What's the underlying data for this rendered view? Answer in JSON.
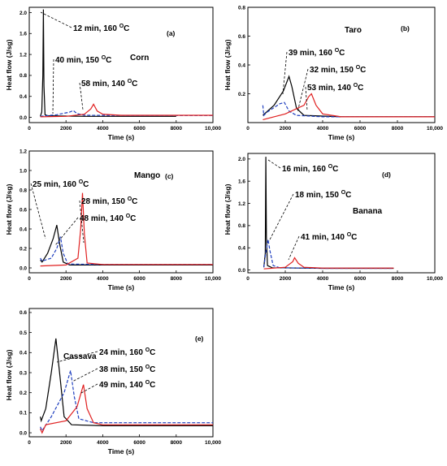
{
  "chart_data": [
    {
      "type": "line",
      "panel": "(a)",
      "crop": "Corn",
      "xlabel": "Time (s)",
      "ylabel": "Heat flow (J/sg)",
      "xlim": [
        0,
        10000
      ],
      "ylim": [
        -0.1,
        2.1
      ],
      "xticks": [
        0,
        2000,
        4000,
        6000,
        8000,
        10000
      ],
      "xtick_labels": [
        "0",
        "2000",
        "4000",
        "6000",
        "8000",
        "10,000"
      ],
      "yticks": [
        0.0,
        0.4,
        0.8,
        1.2,
        1.6,
        2.0
      ],
      "ytick_labels": [
        "0.0",
        "0.4",
        "0.8",
        "1.2",
        "1.6",
        "2.0"
      ],
      "series": [
        {
          "color": "#000000",
          "dash": "solid",
          "points": [
            [
              600,
              0.02
            ],
            [
              680,
              0.1
            ],
            [
              740,
              0.8
            ],
            [
              770,
              2.06
            ],
            [
              800,
              0.6
            ],
            [
              860,
              0.05
            ],
            [
              1000,
              0.03
            ],
            [
              3000,
              0.02
            ],
            [
              8000,
              0.02
            ]
          ],
          "annotation": "12 min, 160 ",
          "sup": "O",
          "unit": "C"
        },
        {
          "color": "#1f3fbf",
          "dash": "dashed",
          "points": [
            [
              600,
              0.02
            ],
            [
              1500,
              0.05
            ],
            [
              2200,
              0.1
            ],
            [
              2400,
              0.13
            ],
            [
              2600,
              0.07
            ],
            [
              3000,
              0.04
            ],
            [
              6000,
              0.035
            ],
            [
              10000,
              0.035
            ]
          ],
          "annotation": "40 min, 150 ",
          "sup": "O",
          "unit": "C"
        },
        {
          "color": "#e02020",
          "dash": "solid",
          "points": [
            [
              600,
              0.01
            ],
            [
              2000,
              0.02
            ],
            [
              3000,
              0.06
            ],
            [
              3350,
              0.16
            ],
            [
              3500,
              0.25
            ],
            [
              3700,
              0.12
            ],
            [
              4000,
              0.06
            ],
            [
              5000,
              0.04
            ],
            [
              10000,
              0.04
            ]
          ],
          "annotation": "58 min, 140 ",
          "sup": "O",
          "unit": "C"
        }
      ]
    },
    {
      "type": "line",
      "panel": "(b)",
      "crop": "Taro",
      "xlabel": "Time (s)",
      "ylabel": "Heat flow (J/sg)",
      "xlim": [
        0,
        10000
      ],
      "ylim": [
        0.0,
        0.8
      ],
      "xticks": [
        0,
        2000,
        4000,
        6000,
        8000,
        10000
      ],
      "xtick_labels": [
        "0",
        "2000",
        "4000",
        "6000",
        "8000",
        "10,000"
      ],
      "yticks": [
        0.2,
        0.4,
        0.6,
        0.8
      ],
      "ytick_labels": [
        "0.2",
        "0.4",
        "0.6",
        "0.8"
      ],
      "series": [
        {
          "color": "#000000",
          "dash": "solid",
          "points": [
            [
              800,
              0.05
            ],
            [
              1400,
              0.12
            ],
            [
              1900,
              0.22
            ],
            [
              2200,
              0.32
            ],
            [
              2350,
              0.25
            ],
            [
              2600,
              0.1
            ],
            [
              3000,
              0.05
            ],
            [
              5000,
              0.04
            ],
            [
              10000,
              0.04
            ]
          ],
          "annotation": "39 min, 160 ",
          "sup": "O",
          "unit": "C"
        },
        {
          "color": "#1f3fbf",
          "dash": "dashed",
          "points": [
            [
              800,
              0.12
            ],
            [
              850,
              0.05
            ],
            [
              1000,
              0.07
            ],
            [
              1700,
              0.13
            ],
            [
              1950,
              0.14
            ],
            [
              2200,
              0.08
            ],
            [
              2600,
              0.05
            ],
            [
              4000,
              0.04
            ],
            [
              10000,
              0.04
            ]
          ],
          "annotation": "32 min, 150 ",
          "sup": "O",
          "unit": "C"
        },
        {
          "color": "#e02020",
          "dash": "solid",
          "points": [
            [
              800,
              0.02
            ],
            [
              2000,
              0.06
            ],
            [
              3000,
              0.12
            ],
            [
              3250,
              0.18
            ],
            [
              3400,
              0.2
            ],
            [
              3650,
              0.12
            ],
            [
              4000,
              0.06
            ],
            [
              5000,
              0.04
            ],
            [
              10000,
              0.04
            ]
          ],
          "annotation": "53 min, 140 ",
          "sup": "O",
          "unit": "C"
        }
      ]
    },
    {
      "type": "line",
      "panel": "(c)",
      "crop": "Mango",
      "xlabel": "Time (s)",
      "ylabel": "Heat flow (J/sg)",
      "xlim": [
        0,
        10000
      ],
      "ylim": [
        -0.05,
        1.2
      ],
      "xticks": [
        0,
        2000,
        4000,
        6000,
        8000,
        10000
      ],
      "xtick_labels": [
        "0",
        "2000",
        "4000",
        "6000",
        "8000",
        "10,000"
      ],
      "yticks": [
        0.0,
        0.2,
        0.4,
        0.6,
        0.8,
        1.0,
        1.2
      ],
      "ytick_labels": [
        "0.0",
        "0.2",
        "0.4",
        "0.6",
        "0.8",
        "1.0",
        "1.2"
      ],
      "series": [
        {
          "color": "#000000",
          "dash": "solid",
          "points": [
            [
              600,
              0.08
            ],
            [
              700,
              0.06
            ],
            [
              1000,
              0.15
            ],
            [
              1300,
              0.3
            ],
            [
              1500,
              0.44
            ],
            [
              1650,
              0.25
            ],
            [
              1850,
              0.06
            ],
            [
              2200,
              0.03
            ],
            [
              3000,
              0.03
            ],
            [
              10000,
              0.03
            ]
          ],
          "annotation": "25 min, 160 ",
          "sup": "O",
          "unit": "C"
        },
        {
          "color": "#1f3fbf",
          "dash": "dashed",
          "points": [
            [
              600,
              0.1
            ],
            [
              700,
              0.07
            ],
            [
              1200,
              0.1
            ],
            [
              1500,
              0.2
            ],
            [
              1700,
              0.32
            ],
            [
              1850,
              0.15
            ],
            [
              2100,
              0.04
            ],
            [
              4000,
              0.035
            ],
            [
              10000,
              0.035
            ]
          ],
          "annotation": "28 min, 150 ",
          "sup": "O",
          "unit": "C"
        },
        {
          "color": "#e02020",
          "dash": "solid",
          "points": [
            [
              600,
              0.02
            ],
            [
              2000,
              0.03
            ],
            [
              2650,
              0.1
            ],
            [
              2800,
              0.4
            ],
            [
              2900,
              0.77
            ],
            [
              3000,
              0.35
            ],
            [
              3150,
              0.05
            ],
            [
              4000,
              0.035
            ],
            [
              10000,
              0.035
            ]
          ],
          "annotation": "48 min, 140 ",
          "sup": "O",
          "unit": "C"
        }
      ]
    },
    {
      "type": "line",
      "panel": "(d)",
      "crop": "Banana",
      "xlabel": "Time (s)",
      "ylabel": "Heat flow (J/sg)",
      "xlim": [
        0,
        10000
      ],
      "ylim": [
        -0.05,
        2.1
      ],
      "xticks": [
        0,
        2000,
        4000,
        6000,
        8000,
        10000
      ],
      "xtick_labels": [
        "0",
        "2000",
        "4000",
        "6000",
        "8000",
        "10,000"
      ],
      "yticks": [
        0.0,
        0.4,
        0.8,
        1.2,
        1.6,
        2.0
      ],
      "ytick_labels": [
        "0.0",
        "0.4",
        "0.8",
        "1.2",
        "1.6",
        "2.0"
      ],
      "series": [
        {
          "color": "#000000",
          "dash": "solid",
          "points": [
            [
              850,
              0.05
            ],
            [
              930,
              0.3
            ],
            [
              960,
              2.04
            ],
            [
              990,
              0.6
            ],
            [
              1050,
              0.08
            ],
            [
              1300,
              0.04
            ],
            [
              4000,
              0.03
            ],
            [
              7800,
              0.03
            ]
          ],
          "annotation": "16 min,  160 ",
          "sup": "O",
          "unit": "C"
        },
        {
          "color": "#1f3fbf",
          "dash": "dashed",
          "points": [
            [
              850,
              0.05
            ],
            [
              950,
              0.3
            ],
            [
              1080,
              0.55
            ],
            [
              1180,
              0.35
            ],
            [
              1350,
              0.08
            ],
            [
              1700,
              0.04
            ],
            [
              4000,
              0.03
            ],
            [
              7800,
              0.03
            ]
          ],
          "annotation": "18 min, 150 ",
          "sup": "O",
          "unit": "C"
        },
        {
          "color": "#e02020",
          "dash": "solid",
          "points": [
            [
              850,
              0.02
            ],
            [
              2000,
              0.05
            ],
            [
              2400,
              0.15
            ],
            [
              2500,
              0.22
            ],
            [
              2700,
              0.12
            ],
            [
              3000,
              0.05
            ],
            [
              4000,
              0.035
            ],
            [
              7800,
              0.035
            ]
          ],
          "annotation": "41 min, 140 ",
          "sup": "O",
          "unit": "C"
        }
      ]
    },
    {
      "type": "line",
      "panel": "(e)",
      "crop": "Cassava",
      "xlabel": "Time (s)",
      "ylabel": "Heat flow (J/sg)",
      "xlim": [
        0,
        10000
      ],
      "ylim": [
        -0.02,
        0.62
      ],
      "xticks": [
        0,
        2000,
        4000,
        6000,
        8000,
        10000
      ],
      "xtick_labels": [
        "0",
        "2000",
        "4000",
        "6000",
        "8000",
        "10,000"
      ],
      "yticks": [
        0.0,
        0.1,
        0.2,
        0.3,
        0.4,
        0.5,
        0.6
      ],
      "ytick_labels": [
        "0.0",
        "0.1",
        "0.2",
        "0.3",
        "0.4",
        "0.5",
        "0.6"
      ],
      "series": [
        {
          "color": "#000000",
          "dash": "solid",
          "points": [
            [
              600,
              0.08
            ],
            [
              650,
              0.06
            ],
            [
              900,
              0.12
            ],
            [
              1200,
              0.3
            ],
            [
              1450,
              0.47
            ],
            [
              1650,
              0.3
            ],
            [
              1900,
              0.08
            ],
            [
              2300,
              0.04
            ],
            [
              4000,
              0.035
            ],
            [
              10000,
              0.035
            ]
          ],
          "annotation": "24 min, 160 ",
          "sup": "O",
          "unit": "C"
        },
        {
          "color": "#1f3fbf",
          "dash": "dashed",
          "points": [
            [
              600,
              0.03
            ],
            [
              700,
              0.01
            ],
            [
              1200,
              0.08
            ],
            [
              1900,
              0.2
            ],
            [
              2250,
              0.31
            ],
            [
              2450,
              0.18
            ],
            [
              2700,
              0.07
            ],
            [
              3500,
              0.05
            ],
            [
              10000,
              0.05
            ]
          ],
          "annotation": "38 min, 150 ",
          "sup": "O",
          "unit": "C"
        },
        {
          "color": "#e02020",
          "dash": "solid",
          "points": [
            [
              600,
              0.02
            ],
            [
              700,
              0.0
            ],
            [
              900,
              0.04
            ],
            [
              2000,
              0.06
            ],
            [
              2600,
              0.13
            ],
            [
              2950,
              0.24
            ],
            [
              3150,
              0.12
            ],
            [
              3500,
              0.05
            ],
            [
              4000,
              0.04
            ],
            [
              10000,
              0.04
            ]
          ],
          "annotation": "49 min, 140 ",
          "sup": "O",
          "unit": "C"
        }
      ]
    }
  ]
}
